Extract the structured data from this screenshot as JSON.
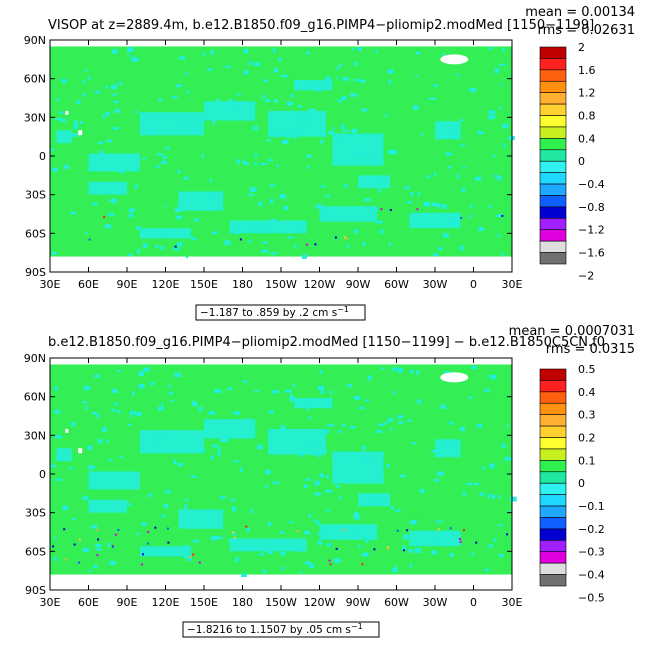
{
  "chart_data": [
    {
      "type": "heatmap",
      "title": "VISOP at z=2889.4m, b.e12.B1850.f09_g16.PIMP4−pliomip2.modMed [1150−1199]",
      "stats": {
        "mean": "mean = 0.00134",
        "rms": "rms = 0.02631"
      },
      "range_label": "−1.187 to .859 by .2 cm s",
      "range_unit_sup": "−1",
      "x_ticks": [
        "30E",
        "60E",
        "90E",
        "120E",
        "150E",
        "180",
        "150W",
        "120W",
        "90W",
        "60W",
        "30W",
        "0",
        "30E"
      ],
      "y_ticks": [
        "90N",
        "60N",
        "30N",
        "0",
        "30S",
        "60S",
        "90S"
      ],
      "x_range": [
        30,
        390
      ],
      "y_range": [
        -90,
        90
      ],
      "colorbar": {
        "colors": [
          "#c00000",
          "#ff2020",
          "#ff6010",
          "#ff9010",
          "#ffb030",
          "#ffd030",
          "#ffff30",
          "#c8f020",
          "#30f050",
          "#20e8a0",
          "#30f0f0",
          "#20d8ff",
          "#20a8ff",
          "#1060ff",
          "#0000d0",
          "#a020ff",
          "#e000e0",
          "#dedede",
          "#707070"
        ],
        "labels": [
          "2",
          "1.6",
          "1.2",
          "0.8",
          "0.4",
          "0",
          "−0.4",
          "−0.8",
          "−1.2",
          "−1.6",
          "−2"
        ]
      }
    },
    {
      "type": "heatmap",
      "title": "b.e12.B1850.f09_g16.PIMP4−pliomip2.modMed [1150−1199] − b.e12.B1850C5CN.f0",
      "stats": {
        "mean": "mean = 0.0007031",
        "rms": "rms = 0.0315"
      },
      "range_label": "−1.8216 to 1.1507 by .05 cm s",
      "range_unit_sup": "−1",
      "x_ticks": [
        "30E",
        "60E",
        "90E",
        "120E",
        "150E",
        "180",
        "150W",
        "120W",
        "90W",
        "60W",
        "30W",
        "0",
        "30E"
      ],
      "y_ticks": [
        "90N",
        "60N",
        "30N",
        "0",
        "30S",
        "60S",
        "90S"
      ],
      "x_range": [
        30,
        390
      ],
      "y_range": [
        -90,
        90
      ],
      "colorbar": {
        "colors": [
          "#c00000",
          "#ff2020",
          "#ff6010",
          "#ff9010",
          "#ffb030",
          "#ffd030",
          "#ffff30",
          "#c8f020",
          "#30f050",
          "#20e8a0",
          "#30f0f0",
          "#20d8ff",
          "#20a8ff",
          "#1060ff",
          "#0000d0",
          "#a020ff",
          "#e000e0",
          "#dedede",
          "#707070"
        ],
        "labels": [
          "0.5",
          "0.4",
          "0.3",
          "0.2",
          "0.1",
          "0",
          "−0.1",
          "−0.2",
          "−0.3",
          "−0.4",
          "−0.5"
        ]
      }
    }
  ],
  "map_colors": {
    "land": "#ffffff",
    "ocean": "#33ee55",
    "low": "#22eedd"
  }
}
